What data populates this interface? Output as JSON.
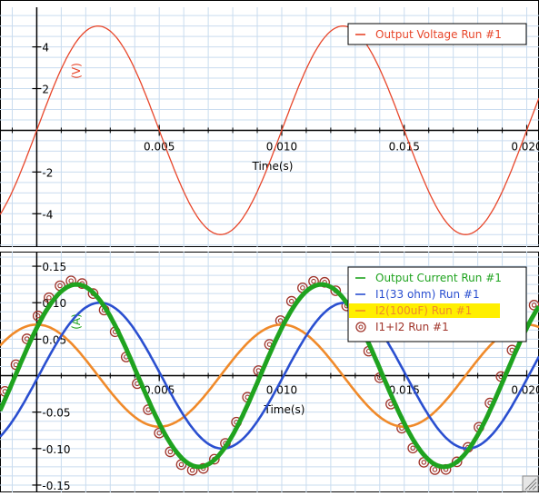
{
  "chart_data": [
    {
      "type": "line",
      "x_axis": {
        "range": [
          -0.0015,
          0.0205
        ],
        "ticks": [
          0.005,
          0.01,
          0.015,
          0.02
        ],
        "tick_labels": [
          "0.005",
          "0.010",
          "0.015",
          "0.020"
        ],
        "label": "Time(s)"
      },
      "y_axis": {
        "range": [
          -5.6,
          5.9
        ],
        "ticks": [
          -4,
          -2,
          2,
          4
        ],
        "tick_labels": [
          "-4",
          "-2",
          "2",
          "4"
        ],
        "label": "(V)"
      },
      "grid": true,
      "legend_position": "top-right",
      "series": [
        {
          "name": "Output Voltage Run #1",
          "color": "#e8462a",
          "kind": "sine",
          "amplitude": 5.0,
          "frequency_hz": 100,
          "phase_rad": 0.0,
          "marker": "none"
        }
      ]
    },
    {
      "type": "line",
      "x_axis": {
        "range": [
          -0.0015,
          0.0205
        ],
        "ticks": [
          0.005,
          0.01,
          0.015,
          0.02
        ],
        "tick_labels": [
          "0.005",
          "0.010",
          "0.015",
          "0.020"
        ],
        "label": "Time(s)"
      },
      "y_axis": {
        "range": [
          -0.16,
          0.17
        ],
        "ticks": [
          -0.15,
          -0.1,
          -0.05,
          0.05,
          0.1,
          0.15
        ],
        "tick_labels": [
          "-0.15",
          "-0.10",
          "-0.05",
          "0.05",
          "0.10",
          "0.15"
        ],
        "label": "(A)"
      },
      "grid": true,
      "legend_position": "top-right",
      "series": [
        {
          "name": "Output Current Run #1",
          "color": "#1fa31f",
          "kind": "sine",
          "amplitude": 0.125,
          "frequency_hz": 100,
          "phase_rad": 0.55,
          "marker": "none"
        },
        {
          "name": "I1(33 ohm) Run #1",
          "color": "#2a4fd0",
          "kind": "sine",
          "amplitude": 0.1,
          "frequency_hz": 100,
          "phase_rad": -0.05,
          "marker": "none"
        },
        {
          "name": "I2(100uF) Run #1",
          "color": "#f08a2a",
          "kind": "sine",
          "amplitude": 0.07,
          "frequency_hz": 100,
          "phase_rad": 1.5708,
          "marker": "none",
          "highlight": "#ffef00"
        },
        {
          "name": "I1+I2 Run #1",
          "color": "#a0342a",
          "kind": "sine",
          "amplitude": 0.13,
          "frequency_hz": 100,
          "phase_rad": 0.65,
          "marker": "at"
        }
      ]
    }
  ]
}
